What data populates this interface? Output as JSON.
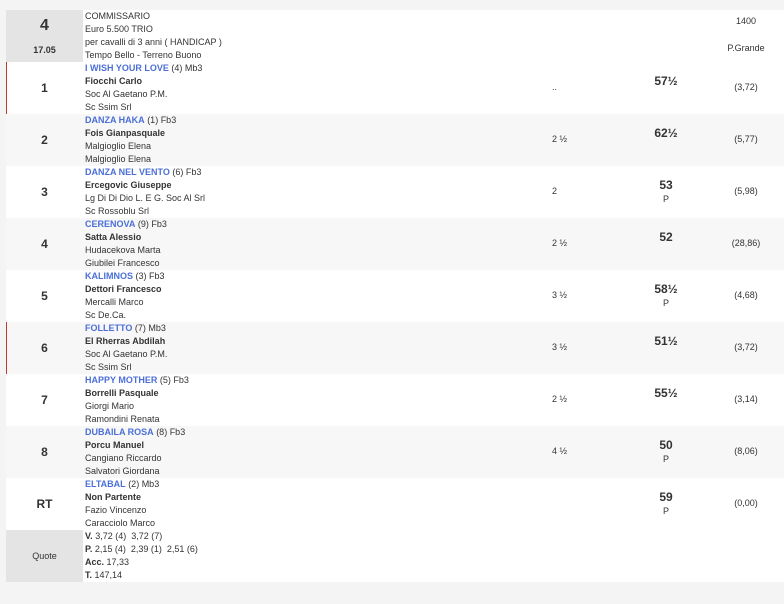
{
  "race": {
    "number": "4",
    "time": "17.05",
    "title": "COMMISSARIO",
    "prize": "Euro 5.500 TRIO",
    "conditions": "per cavalli di 3 anni ( HANDICAP )",
    "weather": "Tempo Bello - Terreno Buono",
    "distance": "1400",
    "track": "P.Grande"
  },
  "runners": [
    {
      "pos": "1",
      "horse": "I WISH YOUR LOVE",
      "extra": "(4) Mb3",
      "jockey": "Fiocchi Carlo",
      "trainer": "Soc Al Gaetano P.M.",
      "owner": "Sc Ssim Srl",
      "dist": "..",
      "weight": "57½",
      "p": "",
      "odds": "(3,72)"
    },
    {
      "pos": "2",
      "horse": "DANZA HAKA",
      "extra": "(1) Fb3",
      "jockey": "Fois Gianpasquale",
      "trainer": "Malgioglio Elena",
      "owner": "Malgioglio Elena",
      "dist": "2 ½",
      "weight": "62½",
      "p": "",
      "odds": "(5,77)"
    },
    {
      "pos": "3",
      "horse": "DANZA NEL VENTO",
      "extra": "(6) Fb3",
      "jockey": "Ercegovic Giuseppe",
      "trainer": "Lg Di Di Dio L. E G. Soc Al Srl",
      "owner": "Sc Rossoblu Srl",
      "dist": "2",
      "weight": "53",
      "p": "P",
      "odds": "(5,98)"
    },
    {
      "pos": "4",
      "horse": "CERENOVA",
      "extra": "(9) Fb3",
      "jockey": "Satta Alessio",
      "trainer": "Hudacekova Marta",
      "owner": "Giubilei Francesco",
      "dist": "2 ½",
      "weight": "52",
      "p": "",
      "odds": "(28,86)"
    },
    {
      "pos": "5",
      "horse": "KALIMNOS",
      "extra": "(3) Fb3",
      "jockey": "Dettori Francesco",
      "trainer": "Mercalli Marco",
      "owner": "Sc De.Ca.",
      "dist": "3 ½",
      "weight": "58½",
      "p": "P",
      "odds": "(4,68)"
    },
    {
      "pos": "6",
      "horse": "FOLLETTO",
      "extra": "(7) Mb3",
      "jockey": "El Rherras Abdilah",
      "trainer": "Soc Al Gaetano P.M.",
      "owner": "Sc Ssim Srl",
      "dist": "3 ½",
      "weight": "51½",
      "p": "",
      "odds": "(3,72)"
    },
    {
      "pos": "7",
      "horse": "HAPPY MOTHER",
      "extra": "(5) Fb3",
      "jockey": "Borrelli Pasquale",
      "trainer": "Giorgi Mario",
      "owner": "Ramondini Renata",
      "dist": "2 ½",
      "weight": "55½",
      "p": "",
      "odds": "(3,14)"
    },
    {
      "pos": "8",
      "horse": "DUBAILA ROSA",
      "extra": "(8) Fb3",
      "jockey": "Porcu Manuel",
      "trainer": "Cangiano Riccardo",
      "owner": "Salvatori Giordana",
      "dist": "4 ½",
      "weight": "50",
      "p": "P",
      "odds": "(8,06)"
    },
    {
      "pos": "RT",
      "horse": "ELTABAL",
      "extra": "(2) Mb3",
      "jockey": "Non Partente",
      "trainer": "Fazio Vincenzo",
      "owner": "Caracciolo Marco",
      "dist": "",
      "weight": "59",
      "p": "P",
      "odds": "(0,00)"
    }
  ],
  "quote": {
    "label": "Quote",
    "v_label": "V.",
    "v": "3,72 (4)  3,72 (7)",
    "p_label": "P.",
    "p": "2,15 (4)  2,39 (1)  2,51 (6)",
    "acc_label": "Acc.",
    "acc": "17,33",
    "t_label": "T.",
    "t": "147,14"
  }
}
